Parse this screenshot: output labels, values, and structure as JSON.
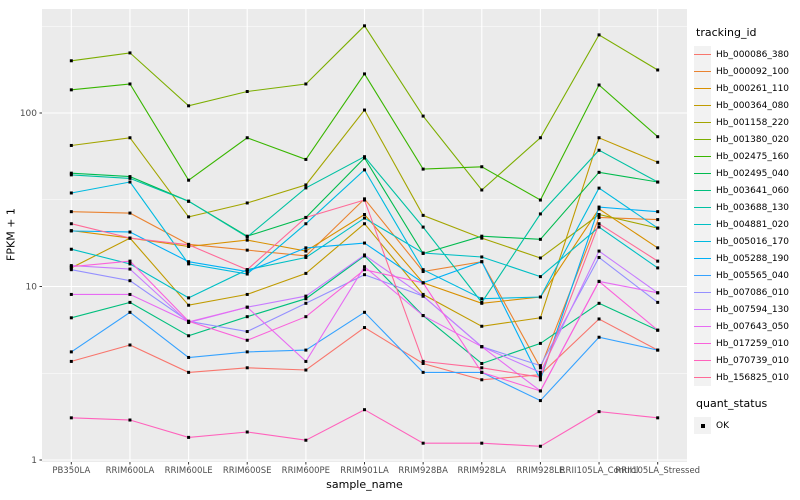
{
  "chart_data": {
    "type": "line",
    "xlabel": "sample_name",
    "ylabel": "FPKM + 1",
    "y_scale": "log10",
    "ylim": [
      0.97,
      400
    ],
    "grid": true,
    "legend_position": "right",
    "y_ticks": [
      {
        "value": 1,
        "label": "1"
      },
      {
        "value": 10,
        "label": "10"
      },
      {
        "value": 100,
        "label": "100"
      }
    ],
    "y_minor_ticks": [
      3.162,
      31.62,
      316.2
    ],
    "categories": [
      "PB350LA",
      "RRIM600LA",
      "RRIM600LE",
      "RRIM600SE",
      "RRIM600PE",
      "RRIM901LA",
      "RRIM928BA",
      "RRIM928LA",
      "RRIM928LE",
      "RRII105LA_Control",
      "RRII105LA_Stressed"
    ],
    "legend_tracking_title": "tracking_id",
    "legend_quant_title": "quant_status",
    "quant_status": [
      {
        "label": "OK",
        "marker": "filled-square",
        "color": "#000000"
      }
    ],
    "series": [
      {
        "name": "Hb_000086_380",
        "color": "#F8766D",
        "values": [
          3.7,
          4.6,
          3.2,
          3.4,
          3.3,
          5.8,
          3.6,
          2.9,
          3.1,
          6.5,
          4.3
        ]
      },
      {
        "name": "Hb_000092_100",
        "color": "#EA8331",
        "values": [
          27,
          26.5,
          17.5,
          16.2,
          15,
          32,
          12.2,
          13.9,
          3.4,
          25,
          24.3
        ]
      },
      {
        "name": "Hb_000261_110",
        "color": "#D89000",
        "values": [
          21,
          19,
          17,
          18.5,
          16,
          26,
          10.5,
          8.0,
          8.7,
          28,
          16.7
        ]
      },
      {
        "name": "Hb_000364_080",
        "color": "#C09B00",
        "values": [
          12.8,
          19,
          7.8,
          9.0,
          11.9,
          23,
          9.0,
          5.9,
          6.6,
          72,
          52
        ]
      },
      {
        "name": "Hb_001158_220",
        "color": "#A3A500",
        "values": [
          65,
          72,
          25.2,
          30.3,
          38.5,
          104,
          25.7,
          19,
          14.6,
          26,
          21.7
        ]
      },
      {
        "name": "Hb_001380_020",
        "color": "#7CAE00",
        "values": [
          200,
          222,
          110,
          133,
          147,
          318,
          96,
          36,
          72,
          282,
          177
        ]
      },
      {
        "name": "Hb_002475_160",
        "color": "#39B600",
        "values": [
          136,
          147,
          41,
          72,
          54,
          168,
          47.5,
          49,
          31.5,
          145,
          73
        ]
      },
      {
        "name": "Hb_002495_040",
        "color": "#00BB4E",
        "values": [
          45,
          43,
          31,
          19.5,
          25,
          55,
          15.5,
          19.5,
          18.7,
          45.5,
          40
        ]
      },
      {
        "name": "Hb_003641_060",
        "color": "#00BF7D",
        "values": [
          6.6,
          8.1,
          5.2,
          6.7,
          8.5,
          15,
          6.8,
          3.6,
          4.7,
          8.0,
          5.6
        ]
      },
      {
        "name": "Hb_003688_130",
        "color": "#00C1A3",
        "values": [
          44,
          42,
          31,
          19.3,
          37,
          56,
          22,
          8.1,
          26.2,
          61,
          40
        ]
      },
      {
        "name": "Hb_004881_020",
        "color": "#00BFC4",
        "values": [
          16.4,
          13.5,
          8.6,
          12.5,
          14.7,
          24.8,
          15.6,
          14.8,
          11.4,
          22,
          12.8
        ]
      },
      {
        "name": "Hb_005016_170",
        "color": "#00BAE0",
        "values": [
          34.6,
          40,
          13.5,
          11.8,
          23,
          47,
          12.5,
          8.5,
          8.7,
          36.9,
          21.7
        ]
      },
      {
        "name": "Hb_005288_190",
        "color": "#00B0F6",
        "values": [
          20.9,
          20.6,
          13.9,
          12.2,
          16.7,
          17.8,
          10.5,
          13.9,
          2.9,
          28.7,
          27
        ]
      },
      {
        "name": "Hb_005565_040",
        "color": "#35A2FF",
        "values": [
          4.2,
          7.1,
          3.9,
          4.2,
          4.3,
          7.1,
          3.2,
          3.2,
          2.2,
          5.1,
          4.3
        ]
      },
      {
        "name": "Hb_007086_010",
        "color": "#9590FF",
        "values": [
          12.5,
          10.8,
          6.3,
          5.5,
          8.0,
          11.7,
          8.8,
          4.5,
          3.5,
          14.7,
          8.1
        ]
      },
      {
        "name": "Hb_007594_130",
        "color": "#C77CFF",
        "values": [
          13.2,
          12.6,
          6.2,
          7.6,
          8.8,
          15.2,
          8.8,
          4.5,
          3.2,
          16,
          9.2
        ]
      },
      {
        "name": "Hb_007643_050",
        "color": "#E76BF3",
        "values": [
          9.0,
          9.0,
          6.25,
          7.6,
          3.7,
          13,
          6.8,
          4.5,
          2.5,
          10.7,
          9.2
        ]
      },
      {
        "name": "Hb_017259_010",
        "color": "#FA62DB",
        "values": [
          13,
          14,
          6.3,
          4.9,
          6.7,
          12.5,
          10.5,
          3.2,
          2.5,
          10.7,
          5.6
        ]
      },
      {
        "name": "Hb_070739_010",
        "color": "#FF62BC",
        "values": [
          1.75,
          1.7,
          1.35,
          1.45,
          1.3,
          1.95,
          1.25,
          1.25,
          1.2,
          1.9,
          1.75
        ]
      },
      {
        "name": "Hb_156825_010",
        "color": "#FF6A98",
        "values": [
          23,
          19,
          17.4,
          12.5,
          25,
          31.5,
          3.7,
          3.4,
          3.0,
          23,
          14
        ]
      }
    ]
  },
  "colors": {
    "panel_bg": "#EBEBEB",
    "grid": "#FFFFFF",
    "axis_text": "#4D4D4D",
    "tick_mark": "#333333",
    "marker": "#000000",
    "legend_key_bg": "#F2F2F2",
    "figure_bg": "#FFFFFF"
  }
}
